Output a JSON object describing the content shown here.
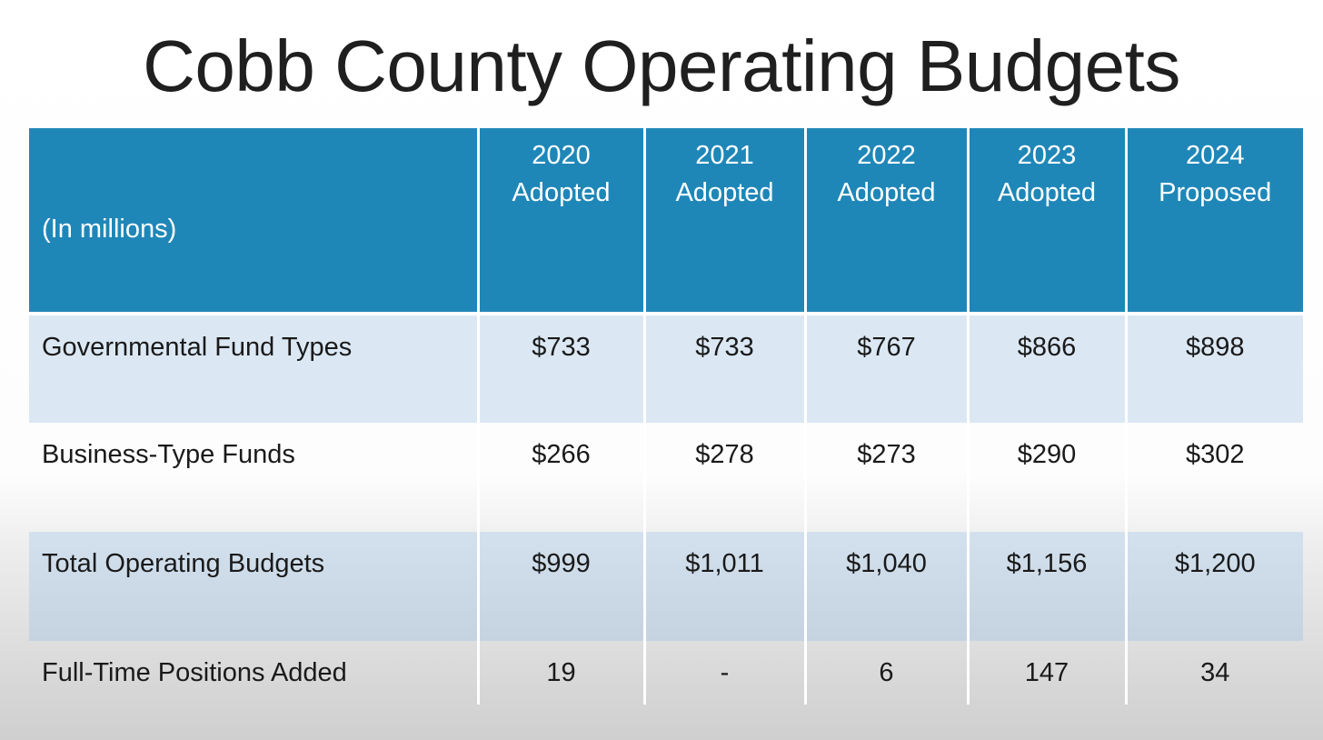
{
  "slide": {
    "title": "Cobb County Operating Budgets"
  },
  "table": {
    "unit_label": "(In millions)",
    "columns": [
      {
        "year": "2020",
        "status": "Adopted"
      },
      {
        "year": "2021",
        "status": "Adopted"
      },
      {
        "year": "2022",
        "status": "Adopted"
      },
      {
        "year": "2023",
        "status": "Adopted"
      },
      {
        "year": "2024",
        "status": "Proposed"
      }
    ],
    "rows": [
      {
        "label": "Governmental Fund Types",
        "values": [
          "$733",
          "$733",
          "$767",
          "$866",
          "$898"
        ]
      },
      {
        "label": "Business-Type Funds",
        "values": [
          "$266",
          "$278",
          "$273",
          "$290",
          "$302"
        ]
      },
      {
        "label": "Total Operating Budgets",
        "values": [
          "$999",
          "$1,011",
          "$1,040",
          "$1,156",
          "$1,200"
        ]
      },
      {
        "label": "Full-Time Positions Added",
        "values": [
          "19",
          "-",
          "6",
          "147",
          "34"
        ]
      }
    ]
  },
  "colors": {
    "header_bg": "#1f87b8",
    "header_text": "#ffffff",
    "band_light": "#dbe8f4",
    "band_total": "#c9d7e5"
  }
}
